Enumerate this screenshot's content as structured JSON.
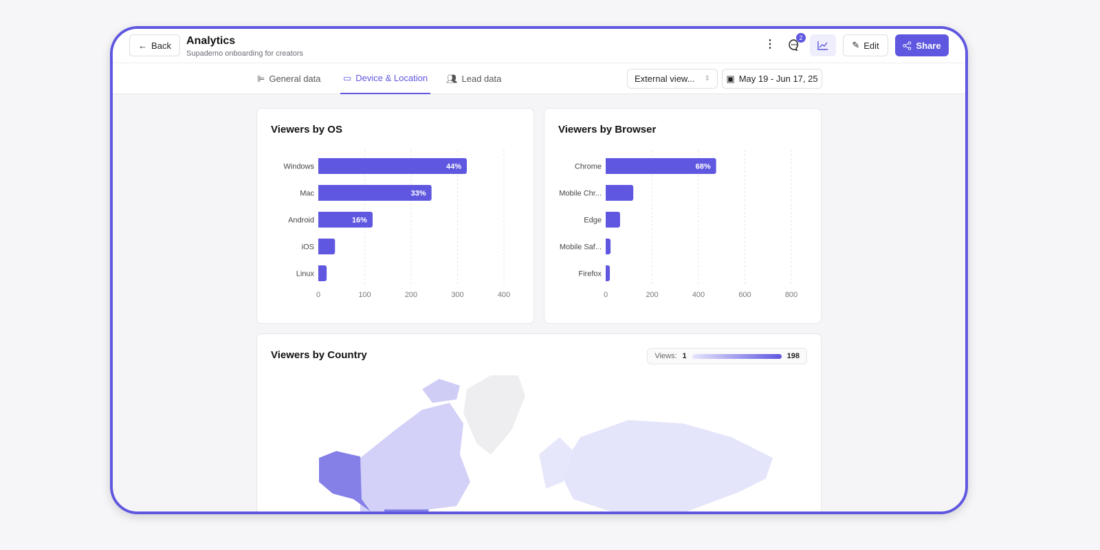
{
  "header": {
    "back_label": "Back",
    "title": "Analytics",
    "subtitle": "Supademo onboarding for creators",
    "comments_badge": "2",
    "edit_label": "Edit",
    "share_label": "Share"
  },
  "tabs": [
    {
      "label": "General data",
      "icon": "bar-align-icon"
    },
    {
      "label": "Device & Location",
      "icon": "devices-icon",
      "active": true
    },
    {
      "label": "Lead data",
      "icon": "users-icon"
    }
  ],
  "filters": {
    "viewer_select": "External view...",
    "date_range": "May 19 - Jun 17, 25"
  },
  "accent": "#5f57e0",
  "chart_data": [
    {
      "type": "bar",
      "orientation": "horizontal",
      "title": "Viewers by OS",
      "categories": [
        "Windows",
        "Mac",
        "Android",
        "iOS",
        "Linux"
      ],
      "values": [
        320,
        244,
        117,
        36,
        18
      ],
      "labels": [
        "44%",
        "33%",
        "16%",
        "",
        ""
      ],
      "xlim": [
        0,
        400
      ],
      "xticks": [
        "0",
        "100",
        "200",
        "300",
        "400"
      ],
      "grid": true
    },
    {
      "type": "bar",
      "orientation": "horizontal",
      "title": "Viewers by Browser",
      "categories": [
        "Chrome",
        "Mobile Chr...",
        "Edge",
        "Mobile Saf...",
        "Firefox"
      ],
      "values": [
        476,
        119,
        62,
        21,
        18
      ],
      "labels": [
        "68%",
        "",
        "",
        "",
        ""
      ],
      "xlim": [
        0,
        800
      ],
      "xticks": [
        "0",
        "200",
        "400",
        "600",
        "800"
      ],
      "grid": true
    }
  ],
  "country": {
    "title": "Viewers by Country",
    "legend_label": "Views:",
    "min": "1",
    "max": "198"
  }
}
